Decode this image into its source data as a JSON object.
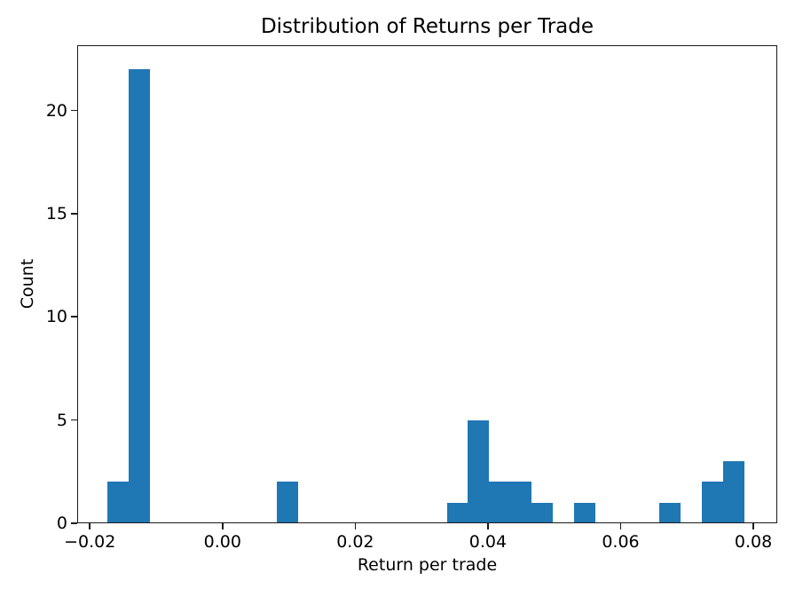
{
  "figure": {
    "title": "Distribution of Returns per Trade",
    "xlabel": "Return per trade",
    "ylabel": "Count"
  },
  "chart_data": {
    "type": "bar",
    "subtype": "histogram",
    "title": "Distribution of Returns per Trade",
    "xlabel": "Return per trade",
    "ylabel": "Count",
    "bar_color": "#1f77b4",
    "axis_color": "#1a1a1a",
    "grid": false,
    "legend": false,
    "bin_start": -0.0174,
    "bin_width": 0.0032,
    "counts": [
      2,
      22,
      0,
      0,
      0,
      0,
      0,
      0,
      2,
      0,
      0,
      0,
      0,
      0,
      0,
      0,
      1,
      5,
      2,
      2,
      1,
      0,
      1,
      0,
      0,
      0,
      1,
      0,
      2,
      3
    ],
    "total_count": 44,
    "xlim": [
      -0.0219,
      0.0836
    ],
    "ylim": [
      0,
      23.16
    ],
    "x_ticks": [
      {
        "value": -0.02,
        "label": "−0.02"
      },
      {
        "value": 0.0,
        "label": "0.00"
      },
      {
        "value": 0.02,
        "label": "0.02"
      },
      {
        "value": 0.04,
        "label": "0.04"
      },
      {
        "value": 0.06,
        "label": "0.06"
      },
      {
        "value": 0.08,
        "label": "0.08"
      }
    ],
    "y_ticks": [
      {
        "value": 0,
        "label": "0"
      },
      {
        "value": 5,
        "label": "5"
      },
      {
        "value": 10,
        "label": "10"
      },
      {
        "value": 15,
        "label": "15"
      },
      {
        "value": 20,
        "label": "20"
      }
    ]
  }
}
